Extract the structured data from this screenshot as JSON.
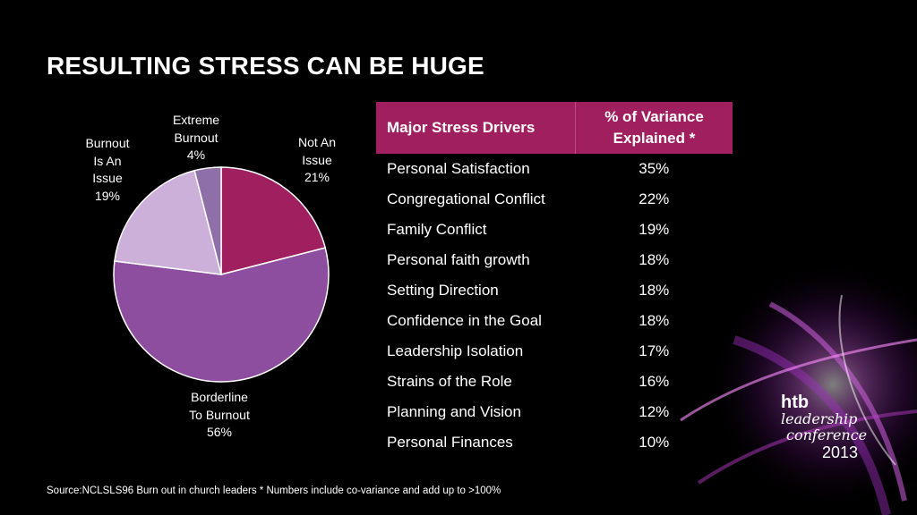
{
  "title": "RESULTING STRESS CAN BE HUGE",
  "colors": {
    "header_bg": "#a0205f",
    "not_an_issue": "#a0205f",
    "borderline": "#8e4ea0",
    "burnout_is_an_issue": "#cdb0da",
    "extreme_burnout": "#8e6fa8"
  },
  "chart_data": [
    {
      "type": "pie",
      "slices": [
        {
          "label_lines": [
            "Not An",
            "Issue",
            "21%"
          ],
          "value": 21,
          "color": "#a0205f"
        },
        {
          "label_lines": [
            "Borderline",
            "To Burnout",
            "56%"
          ],
          "value": 56,
          "color": "#8e4ea0"
        },
        {
          "label_lines": [
            "Burnout",
            "Is An",
            "Issue",
            "19%"
          ],
          "value": 19,
          "color": "#cdb0da"
        },
        {
          "label_lines": [
            "Extreme",
            "Burnout",
            "4%"
          ],
          "value": 4,
          "color": "#8e6fa8"
        }
      ]
    },
    {
      "type": "table",
      "headers": [
        "Major Stress Drivers",
        "% of Variance Explained *"
      ],
      "rows": [
        [
          "Personal Satisfaction",
          "35%"
        ],
        [
          "Congregational Conflict",
          "22%"
        ],
        [
          "Family Conflict",
          "19%"
        ],
        [
          "Personal faith growth",
          "18%"
        ],
        [
          "Setting Direction",
          "18%"
        ],
        [
          "Confidence in the Goal",
          "18%"
        ],
        [
          "Leadership Isolation",
          "17%"
        ],
        [
          "Strains of the Role",
          "16%"
        ],
        [
          "Planning and Vision",
          "12%"
        ],
        [
          "Personal Finances",
          "10%"
        ]
      ]
    }
  ],
  "source": "Source:NCLSLS96 Burn out in church leaders * Numbers include co-variance and add up to >100%",
  "logo": {
    "line1": "htb",
    "line2": "leadership",
    "line3": "conference",
    "line4": "2013"
  }
}
